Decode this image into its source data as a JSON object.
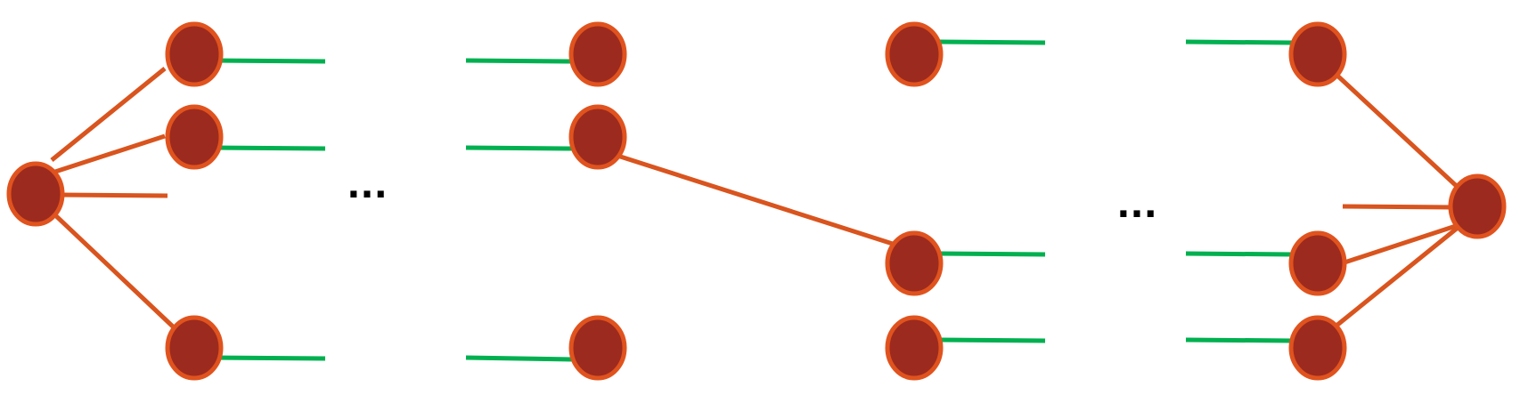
{
  "colors": {
    "node_fill": "#9c2a1e",
    "node_stroke": "#e0531e",
    "orange_edge": "#d9541e",
    "green_edge": "#00b050",
    "ellipsis": "#000000",
    "background": "#ffffff"
  },
  "ellipses": [
    {
      "text": "..."
    },
    {
      "text": "..."
    }
  ]
}
